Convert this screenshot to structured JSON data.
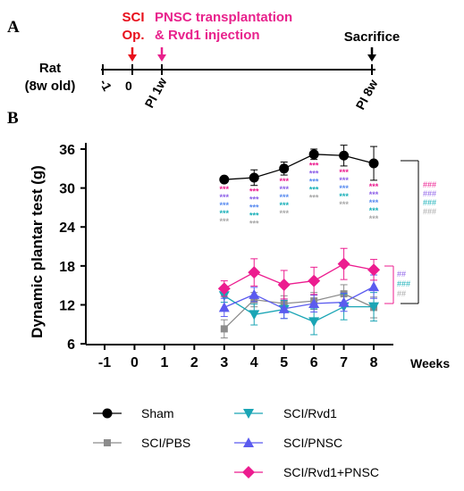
{
  "colors": {
    "axis": "#000000",
    "sci": "#e8101c",
    "pnsc": "#e8218c",
    "sham": "#000000",
    "pbs": "#8c8c8c",
    "rvd1": "#1aa5b5",
    "pnsc_only": "#5b5bef",
    "combo": "#ec1c8f",
    "stars_pink": "#ec1c8f",
    "stars_purple": "#8e61e8",
    "stars_blue": "#5a8cf0",
    "stars_teal": "#1ab0b9",
    "stars_gray": "#a8a8a8"
  },
  "panel_a": {
    "letter": "A",
    "subject_label_1": "Rat",
    "subject_label_2": "(8w old)",
    "event_sci_1": "SCI",
    "event_sci_2": "Op.",
    "event_transplant_1": "PNSC transplantation",
    "event_transplant_2": "& Rvd1 injection",
    "event_sacrifice": "Sacrifice",
    "tick_minus1": "-1",
    "tick_0": "0",
    "tick_pi1w": "PI 1w",
    "tick_pi8w": "PI 8w"
  },
  "panel_b": {
    "letter": "B",
    "sig_sham_vs": [
      "###",
      "###",
      "###",
      "###"
    ],
    "sig_combo_vs": [
      "##",
      "###",
      "##"
    ],
    "star_marker": "***"
  },
  "chart_data": {
    "type": "line",
    "ylabel": "Dynamic plantar test (g)",
    "xlabel": "Weeks",
    "x": [
      -1,
      0,
      1,
      2,
      3,
      4,
      5,
      6,
      7,
      8
    ],
    "xlim": [
      -1.6,
      8.5
    ],
    "ylim": [
      5,
      37
    ],
    "yticks": [
      6,
      12,
      18,
      24,
      30,
      36
    ],
    "legend_position": "bottom",
    "series": [
      {
        "name": "Sham",
        "marker": "circle",
        "color": "#000000",
        "x": [
          3,
          4,
          5,
          6,
          7,
          8
        ],
        "y": [
          31.3,
          31.6,
          33.0,
          35.2,
          35.0,
          33.8
        ],
        "err": [
          0.4,
          1.2,
          1.0,
          0.8,
          1.6,
          2.6
        ]
      },
      {
        "name": "SCI/PBS",
        "marker": "square",
        "color": "#8c8c8c",
        "x": [
          3,
          4,
          5,
          6,
          7,
          8
        ],
        "y": [
          8.3,
          12.8,
          12.2,
          12.6,
          13.7,
          11.6
        ],
        "err": [
          1.4,
          1.1,
          1.2,
          1.3,
          1.4,
          1.6
        ]
      },
      {
        "name": "SCI/Rvd1",
        "marker": "triangle-down",
        "color": "#1aa5b5",
        "x": [
          3,
          4,
          5,
          6,
          7,
          8
        ],
        "y": [
          13.4,
          10.5,
          11.3,
          9.4,
          11.7,
          11.7
        ],
        "err": [
          1.0,
          1.6,
          1.4,
          2.0,
          2.0,
          2.2
        ]
      },
      {
        "name": "SCI/PNSC",
        "marker": "triangle-up",
        "color": "#5b5bef",
        "x": [
          3,
          4,
          5,
          6,
          7,
          8
        ],
        "y": [
          11.6,
          13.6,
          11.4,
          12.2,
          12.4,
          14.8
        ],
        "err": [
          1.4,
          1.1,
          1.5,
          1.3,
          1.4,
          1.8
        ]
      },
      {
        "name": "SCI/Rvd1+PNSC",
        "marker": "diamond",
        "color": "#ec1c8f",
        "x": [
          3,
          4,
          5,
          6,
          7,
          8
        ],
        "y": [
          14.5,
          17.0,
          15.1,
          15.7,
          18.3,
          17.4
        ],
        "err": [
          1.2,
          2.1,
          2.2,
          2.1,
          2.4,
          1.6
        ]
      }
    ]
  }
}
